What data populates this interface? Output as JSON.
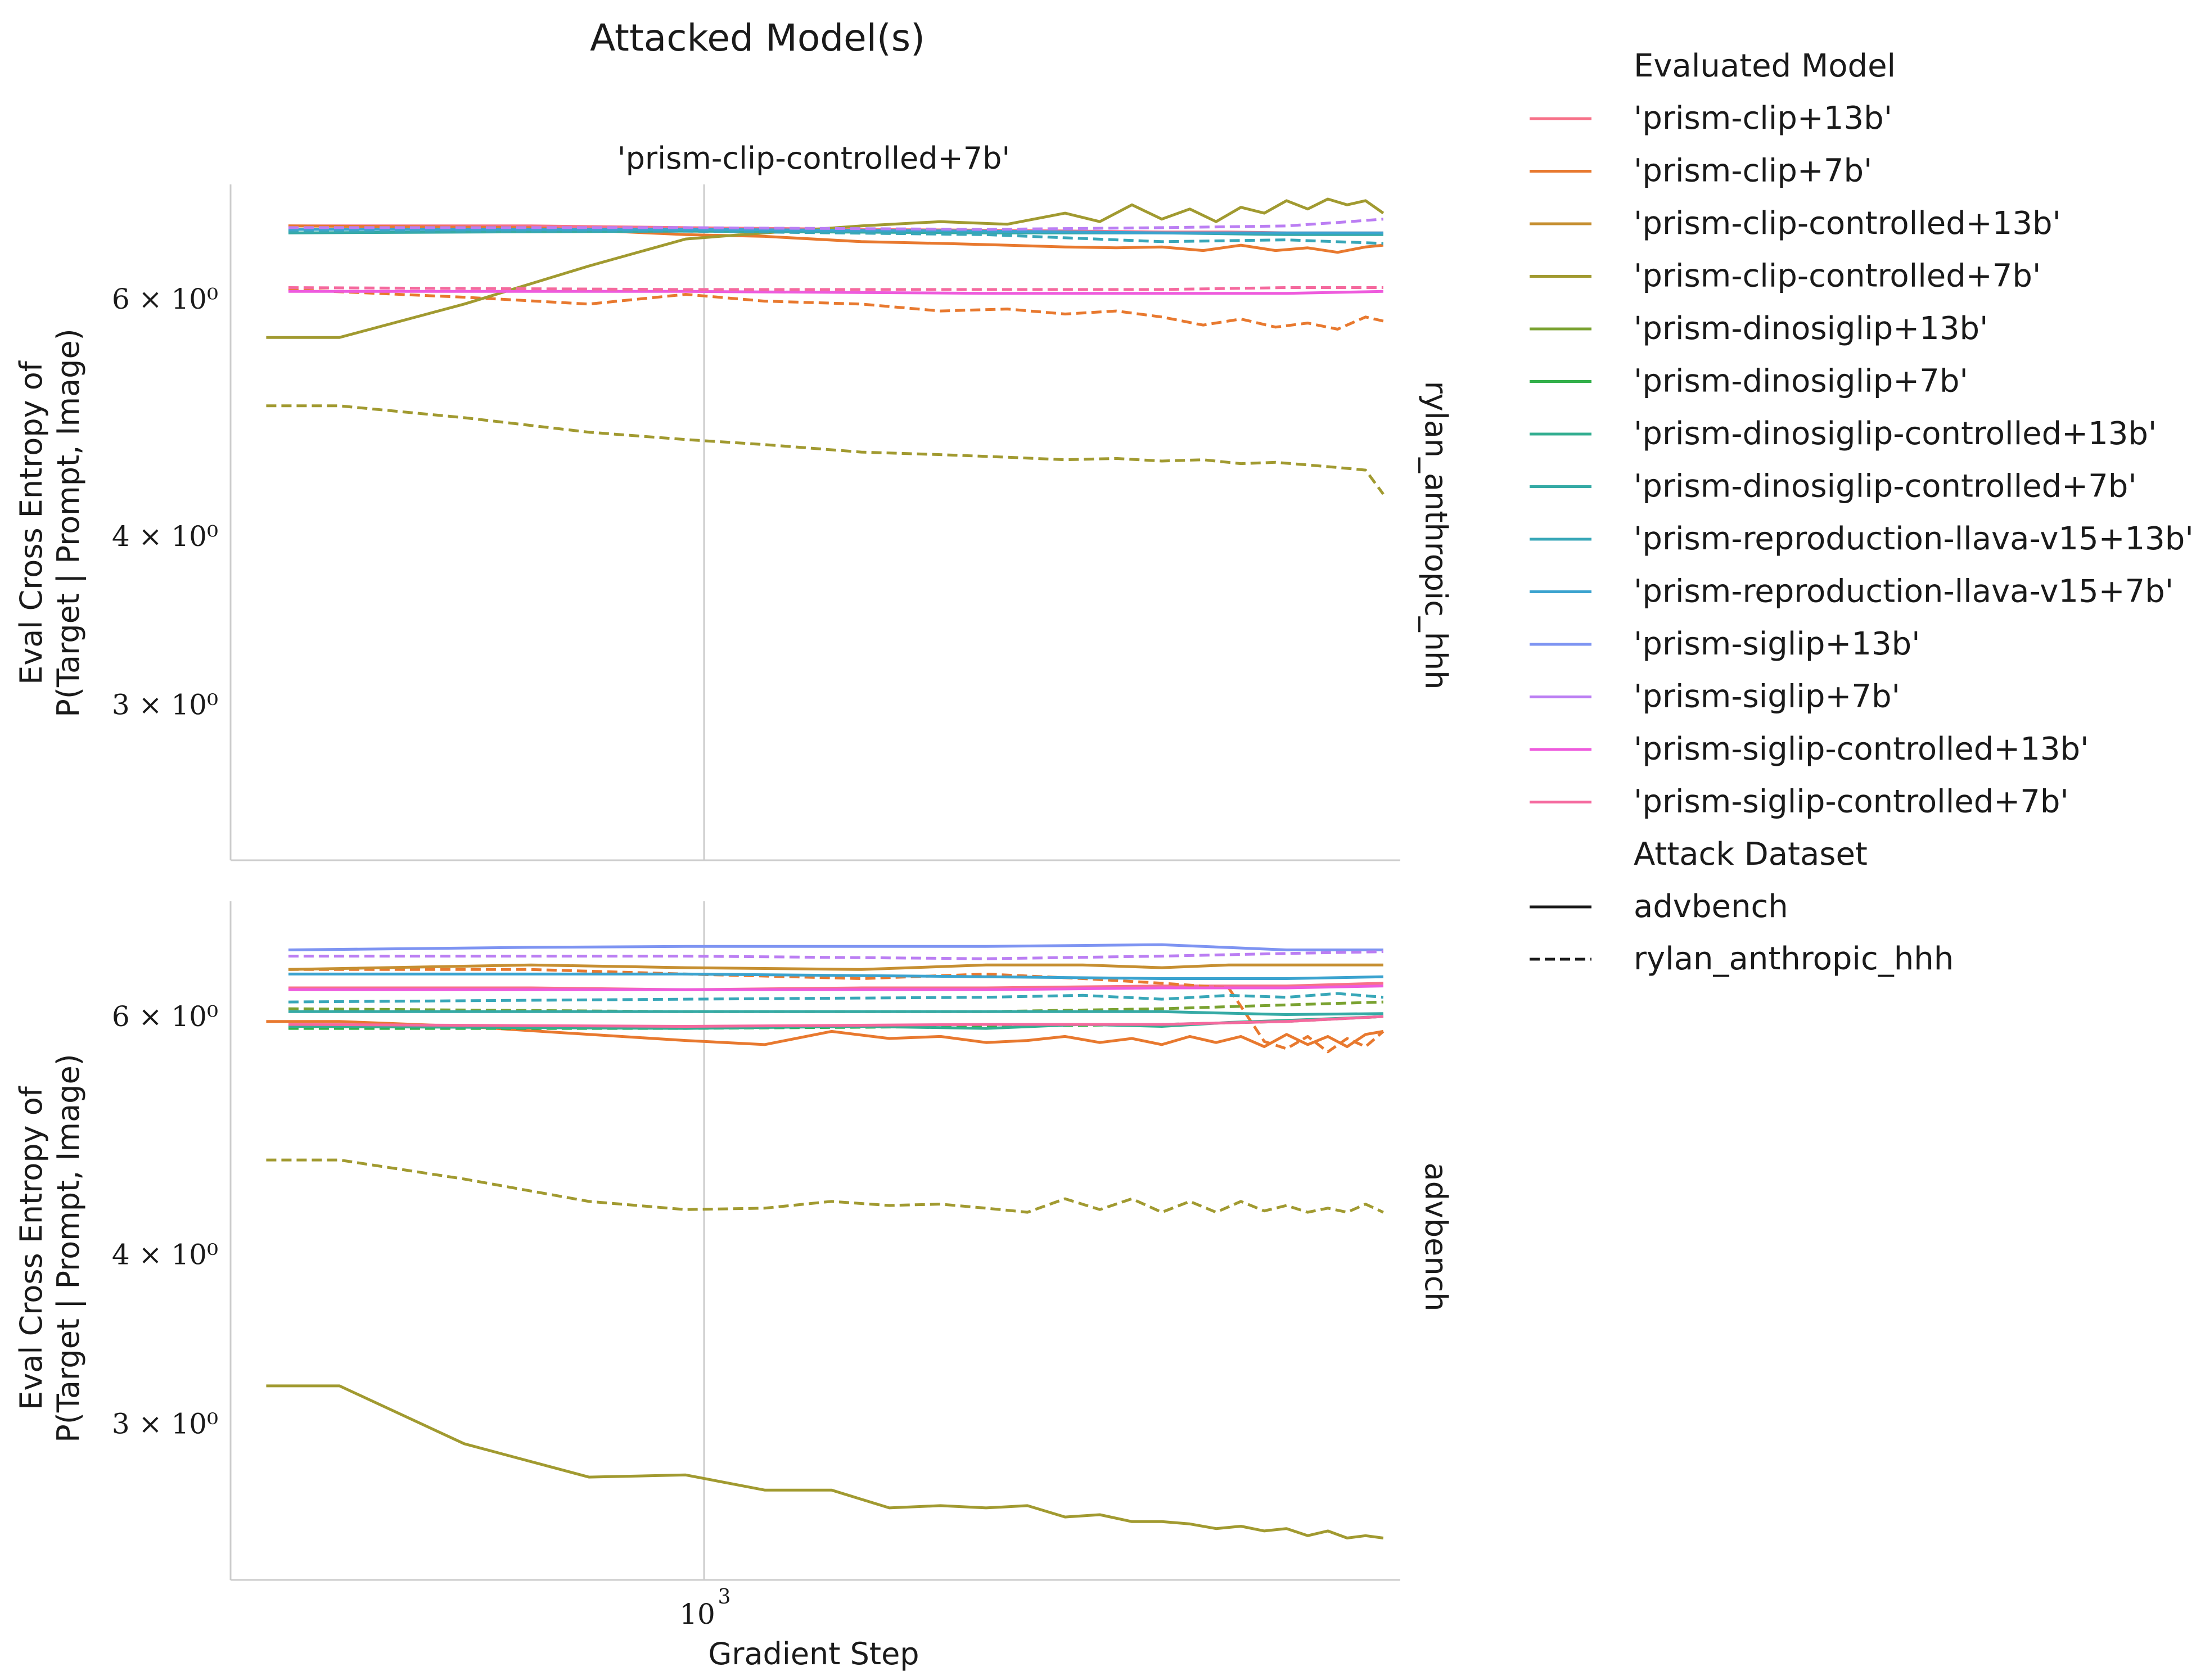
{
  "title": "Attacked Model(s)",
  "column_title": "'prism-clip-controlled+7b'",
  "xlabel": "Gradient Step",
  "ylabel_line1": "Eval Cross Entropy of",
  "ylabel_line2": "P(Target | Prompt, Image)",
  "x_tick": {
    "base": "10",
    "exp": "3"
  },
  "y_ticks": [
    {
      "value": 6,
      "label": "6 × 10⁰"
    },
    {
      "value": 4,
      "label": "4 × 10⁰"
    },
    {
      "value": 3,
      "label": "3 × 10⁰"
    }
  ],
  "legend": {
    "models_title": "Evaluated Model",
    "models": [
      {
        "label": "'prism-clip+13b'",
        "color": "#f77189"
      },
      {
        "label": "'prism-clip+7b'",
        "color": "#e8792f"
      },
      {
        "label": "'prism-clip-controlled+13b'",
        "color": "#c68f31"
      },
      {
        "label": "'prism-clip-controlled+7b'",
        "color": "#a19a30"
      },
      {
        "label": "'prism-dinosiglip+13b'",
        "color": "#7aa231"
      },
      {
        "label": "'prism-dinosiglip+7b'",
        "color": "#33b04b"
      },
      {
        "label": "'prism-dinosiglip-controlled+13b'",
        "color": "#34ae91"
      },
      {
        "label": "'prism-dinosiglip-controlled+7b'",
        "color": "#35aaa5"
      },
      {
        "label": "'prism-reproduction-llava-v15+13b'",
        "color": "#38a7b8"
      },
      {
        "label": "'prism-reproduction-llava-v15+7b'",
        "color": "#3ba3cf"
      },
      {
        "label": "'prism-siglip+13b'",
        "color": "#7e94f2"
      },
      {
        "label": "'prism-siglip+7b'",
        "color": "#bb7ef3"
      },
      {
        "label": "'prism-siglip-controlled+13b'",
        "color": "#ee5bdd"
      },
      {
        "label": "'prism-siglip-controlled+7b'",
        "color": "#f5699e"
      }
    ],
    "styles_title": "Attack Dataset",
    "styles": [
      {
        "label": "advbench",
        "dash": "solid"
      },
      {
        "label": "rylan_anthropic_hhh",
        "dash": "dashed"
      }
    ]
  },
  "chart_data": [
    {
      "type": "line",
      "row_label": "rylan_anthropic_hhh",
      "x_scale": "log",
      "y_scale": "log",
      "xlim": [
        350,
        5200
      ],
      "ylim": [
        2.3,
        7.3
      ],
      "grid": "x only",
      "series": [
        {
          "name": "'prism-clip+13b'",
          "color": "#f77189",
          "dash": "solid",
          "x": [
            400,
            700,
            1000,
            1500,
            2000,
            2500,
            3000,
            3500,
            4000,
            4500,
            5000
          ],
          "y": [
            6.8,
            6.8,
            6.78,
            6.76,
            6.75,
            6.74,
            6.73,
            6.73,
            6.72,
            6.72,
            6.72
          ]
        },
        {
          "name": "'prism-clip+7b'",
          "color": "#e8792f",
          "dash": "solid",
          "x": [
            400,
            700,
            1000,
            1200,
            1500,
            1800,
            2100,
            2400,
            2700,
            3000,
            3300,
            3600,
            3900,
            4200,
            4500,
            4800,
            5000
          ],
          "y": [
            6.8,
            6.78,
            6.7,
            6.68,
            6.62,
            6.6,
            6.58,
            6.56,
            6.55,
            6.56,
            6.52,
            6.58,
            6.52,
            6.55,
            6.5,
            6.56,
            6.58
          ]
        },
        {
          "name": "'prism-clip+7b'",
          "color": "#e8792f",
          "dash": "dashed",
          "x": [
            400,
            600,
            800,
            1000,
            1200,
            1500,
            1800,
            2100,
            2400,
            2700,
            3000,
            3300,
            3600,
            3900,
            4200,
            4500,
            4800,
            5000
          ],
          "y": [
            6.1,
            6.02,
            5.95,
            6.05,
            5.98,
            5.95,
            5.88,
            5.9,
            5.85,
            5.88,
            5.82,
            5.74,
            5.8,
            5.72,
            5.76,
            5.7,
            5.82,
            5.78
          ]
        },
        {
          "name": "'prism-clip-controlled+7b'",
          "color": "#a19a30",
          "dash": "solid",
          "x": [
            380,
            450,
            600,
            800,
            1000,
            1200,
            1500,
            1800,
            2100,
            2400,
            2600,
            2800,
            3000,
            3200,
            3400,
            3600,
            3800,
            4000,
            4200,
            4400,
            4600,
            4800,
            5000
          ],
          "y": [
            5.62,
            5.62,
            5.95,
            6.35,
            6.65,
            6.72,
            6.8,
            6.85,
            6.82,
            6.95,
            6.85,
            7.05,
            6.88,
            7.0,
            6.85,
            7.02,
            6.95,
            7.1,
            7.0,
            7.12,
            7.05,
            7.1,
            6.95
          ]
        },
        {
          "name": "'prism-clip-controlled+7b'",
          "color": "#a19a30",
          "dash": "dashed",
          "x": [
            380,
            450,
            600,
            800,
            1000,
            1200,
            1500,
            1800,
            2100,
            2400,
            2700,
            3000,
            3300,
            3600,
            3900,
            4200,
            4500,
            4800,
            5000
          ],
          "y": [
            5.0,
            5.0,
            4.9,
            4.78,
            4.72,
            4.68,
            4.62,
            4.6,
            4.58,
            4.56,
            4.57,
            4.55,
            4.56,
            4.53,
            4.54,
            4.52,
            4.5,
            4.48,
            4.3
          ]
        },
        {
          "name": "'prism-dinosiglip-controlled+7b'",
          "color": "#35aaa5",
          "dash": "solid",
          "x": [
            400,
            1000,
            2000,
            3000,
            4000,
            5000
          ],
          "y": [
            6.72,
            6.74,
            6.72,
            6.72,
            6.7,
            6.7
          ]
        },
        {
          "name": "'prism-reproduction-llava-v15+13b'",
          "color": "#38a7b8",
          "dash": "dashed",
          "x": [
            400,
            1000,
            2000,
            3000,
            4000,
            5000
          ],
          "y": [
            6.74,
            6.74,
            6.7,
            6.62,
            6.64,
            6.6
          ]
        },
        {
          "name": "'prism-reproduction-llava-v15+7b'",
          "color": "#3ba3cf",
          "dash": "solid",
          "x": [
            400,
            1000,
            2000,
            3000,
            4000,
            5000
          ],
          "y": [
            6.76,
            6.76,
            6.74,
            6.72,
            6.72,
            6.72
          ]
        },
        {
          "name": "'prism-siglip+7b'",
          "color": "#bb7ef3",
          "dash": "dashed",
          "x": [
            400,
            1000,
            2000,
            3000,
            4000,
            4500,
            5000
          ],
          "y": [
            6.78,
            6.78,
            6.76,
            6.78,
            6.8,
            6.84,
            6.88
          ]
        },
        {
          "name": "'prism-siglip-controlled+13b'",
          "color": "#ee5bdd",
          "dash": "solid",
          "x": [
            400,
            1000,
            2000,
            3000,
            4000,
            5000
          ],
          "y": [
            6.08,
            6.08,
            6.06,
            6.06,
            6.06,
            6.08
          ]
        },
        {
          "name": "'prism-siglip-controlled+7b'",
          "color": "#f5699e",
          "dash": "dashed",
          "x": [
            400,
            1000,
            2000,
            3000,
            4000,
            5000
          ],
          "y": [
            6.12,
            6.1,
            6.1,
            6.1,
            6.12,
            6.12
          ]
        }
      ]
    },
    {
      "type": "line",
      "row_label": "advbench",
      "x_scale": "log",
      "y_scale": "log",
      "xlim": [
        350,
        5200
      ],
      "ylim": [
        2.3,
        7.3
      ],
      "grid": "x only",
      "series": [
        {
          "name": "'prism-clip+13b'",
          "color": "#f77189",
          "dash": "solid",
          "x": [
            400,
            700,
            1000,
            1500,
            2000,
            3000,
            4000,
            5000
          ],
          "y": [
            6.3,
            6.3,
            6.28,
            6.3,
            6.3,
            6.32,
            6.32,
            6.35
          ]
        },
        {
          "name": "'prism-clip+7b'",
          "color": "#e8792f",
          "dash": "solid",
          "x": [
            380,
            450,
            600,
            800,
            1000,
            1200,
            1400,
            1600,
            1800,
            2000,
            2200,
            2400,
            2600,
            2800,
            3000,
            3200,
            3400,
            3600,
            3800,
            4000,
            4200,
            4400,
            4600,
            4800,
            5000
          ],
          "y": [
            5.95,
            5.95,
            5.9,
            5.82,
            5.76,
            5.72,
            5.85,
            5.78,
            5.8,
            5.74,
            5.76,
            5.8,
            5.74,
            5.78,
            5.72,
            5.8,
            5.74,
            5.8,
            5.7,
            5.82,
            5.72,
            5.8,
            5.7,
            5.82,
            5.85
          ]
        },
        {
          "name": "'prism-clip+7b'",
          "color": "#e8792f",
          "dash": "dashed",
          "x": [
            400,
            700,
            1000,
            1500,
            2000,
            2500,
            3000,
            3500,
            3800,
            4000,
            4200,
            4400,
            4600,
            4800,
            5000
          ],
          "y": [
            6.5,
            6.5,
            6.45,
            6.4,
            6.45,
            6.4,
            6.35,
            6.3,
            5.75,
            5.68,
            5.8,
            5.65,
            5.78,
            5.7,
            5.85
          ]
        },
        {
          "name": "'prism-clip-controlled+13b'",
          "color": "#c68f31",
          "dash": "solid",
          "x": [
            400,
            700,
            1000,
            1500,
            2000,
            2500,
            3000,
            3500,
            4000,
            4500,
            5000
          ],
          "y": [
            6.5,
            6.55,
            6.52,
            6.5,
            6.55,
            6.55,
            6.52,
            6.55,
            6.55,
            6.55,
            6.55
          ]
        },
        {
          "name": "'prism-clip-controlled+7b'",
          "color": "#a19a30",
          "dash": "solid",
          "x": [
            380,
            450,
            600,
            800,
            1000,
            1200,
            1400,
            1600,
            1800,
            2000,
            2200,
            2400,
            2600,
            2800,
            3000,
            3200,
            3400,
            3600,
            3800,
            4000,
            4200,
            4400,
            4600,
            4800,
            5000
          ],
          "y": [
            3.2,
            3.2,
            2.9,
            2.74,
            2.75,
            2.68,
            2.68,
            2.6,
            2.61,
            2.6,
            2.61,
            2.56,
            2.57,
            2.54,
            2.54,
            2.53,
            2.51,
            2.52,
            2.5,
            2.51,
            2.48,
            2.5,
            2.47,
            2.48,
            2.47
          ]
        },
        {
          "name": "'prism-clip-controlled+7b'",
          "color": "#a19a30",
          "dash": "dashed",
          "x": [
            380,
            450,
            600,
            800,
            1000,
            1200,
            1400,
            1600,
            1800,
            2000,
            2200,
            2400,
            2600,
            2800,
            3000,
            3200,
            3400,
            3600,
            3800,
            4000,
            4200,
            4400,
            4600,
            4800,
            5000
          ],
          "y": [
            4.7,
            4.7,
            4.55,
            4.38,
            4.32,
            4.33,
            4.38,
            4.35,
            4.36,
            4.33,
            4.3,
            4.4,
            4.32,
            4.4,
            4.3,
            4.38,
            4.3,
            4.38,
            4.31,
            4.35,
            4.3,
            4.33,
            4.3,
            4.36,
            4.3
          ]
        },
        {
          "name": "'prism-dinosiglip+13b'",
          "color": "#7aa231",
          "dash": "dashed",
          "x": [
            400,
            1000,
            2000,
            3000,
            4000,
            5000
          ],
          "y": [
            6.08,
            6.05,
            6.05,
            6.08,
            6.12,
            6.15
          ]
        },
        {
          "name": "'prism-dinosiglip+7b'",
          "color": "#33b04b",
          "dash": "dashed",
          "x": [
            400,
            1000,
            2000,
            3000,
            4000,
            5000
          ],
          "y": [
            5.88,
            5.88,
            5.9,
            5.92,
            5.95,
            6.0
          ]
        },
        {
          "name": "'prism-dinosiglip-controlled+13b'",
          "color": "#34ae91",
          "dash": "solid",
          "x": [
            400,
            1000,
            1500,
            2000,
            2500,
            3000,
            3500,
            4000,
            4500,
            5000
          ],
          "y": [
            5.9,
            5.88,
            5.9,
            5.88,
            5.92,
            5.9,
            5.94,
            5.96,
            5.98,
            6.0
          ]
        },
        {
          "name": "'prism-dinosiglip-controlled+7b'",
          "color": "#35aaa5",
          "dash": "solid",
          "x": [
            400,
            1000,
            2000,
            3000,
            4000,
            5000
          ],
          "y": [
            6.05,
            6.05,
            6.05,
            6.05,
            6.02,
            6.03
          ]
        },
        {
          "name": "'prism-reproduction-llava-v15+13b'",
          "color": "#38a7b8",
          "dash": "dashed",
          "x": [
            400,
            1000,
            2000,
            2500,
            3000,
            3500,
            4000,
            4500,
            5000
          ],
          "y": [
            6.15,
            6.18,
            6.2,
            6.22,
            6.18,
            6.22,
            6.2,
            6.24,
            6.2
          ]
        },
        {
          "name": "'prism-reproduction-llava-v15+7b'",
          "color": "#3ba3cf",
          "dash": "solid",
          "x": [
            400,
            1000,
            2000,
            3000,
            4000,
            5000
          ],
          "y": [
            6.45,
            6.45,
            6.42,
            6.4,
            6.4,
            6.42
          ]
        },
        {
          "name": "'prism-siglip+13b'",
          "color": "#7e94f2",
          "dash": "solid",
          "x": [
            400,
            700,
            1000,
            2000,
            3000,
            4000,
            5000
          ],
          "y": [
            6.72,
            6.75,
            6.76,
            6.76,
            6.78,
            6.72,
            6.72
          ]
        },
        {
          "name": "'prism-siglip+7b'",
          "color": "#bb7ef3",
          "dash": "dashed",
          "x": [
            400,
            1000,
            2000,
            3000,
            4000,
            5000
          ],
          "y": [
            6.65,
            6.65,
            6.62,
            6.65,
            6.68,
            6.7
          ]
        },
        {
          "name": "'prism-siglip-controlled+13b'",
          "color": "#ee5bdd",
          "dash": "solid",
          "x": [
            400,
            1000,
            2000,
            3000,
            4000,
            5000
          ],
          "y": [
            6.28,
            6.28,
            6.28,
            6.3,
            6.3,
            6.32
          ]
        },
        {
          "name": "'prism-siglip-controlled+7b'",
          "color": "#f5699e",
          "dash": "solid",
          "x": [
            400,
            1000,
            2000,
            3000,
            4000,
            5000
          ],
          "y": [
            5.92,
            5.9,
            5.92,
            5.92,
            5.95,
            6.0
          ]
        }
      ]
    }
  ]
}
